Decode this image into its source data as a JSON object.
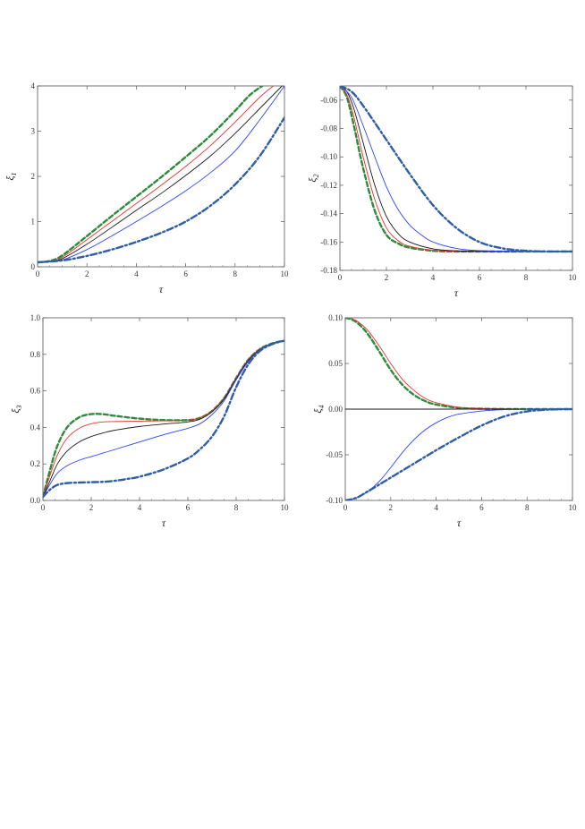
{
  "colors": {
    "green_dashed": "#2e8b3a",
    "red_solid": "#e8322e",
    "black_solid": "#1a1a1a",
    "blue_solid": "#2b45ff",
    "blue_dashdot": "#2f5ea6",
    "zero_line": "#000000"
  },
  "chart_data": [
    {
      "type": "line",
      "panel": "top-left",
      "xlabel": "τ",
      "ylabel": "ξ1",
      "xlim": [
        0,
        10
      ],
      "ylim": [
        0,
        4
      ],
      "xticks": [
        0,
        2,
        4,
        6,
        8,
        10
      ],
      "yticks": [
        0,
        1,
        2,
        3,
        4
      ],
      "ytick_labels": [
        "0",
        "1",
        "2",
        "3",
        "4"
      ],
      "grid": false,
      "series": [
        {
          "style": "green_dashed",
          "x": [
            0,
            0.5,
            1,
            2,
            3,
            4,
            5,
            6,
            7,
            8,
            8.6,
            9.1
          ],
          "y": [
            0.1,
            0.13,
            0.25,
            0.68,
            1.12,
            1.55,
            1.98,
            2.43,
            2.9,
            3.45,
            3.8,
            4.0
          ]
        },
        {
          "style": "red_solid",
          "x": [
            0,
            0.5,
            1,
            2,
            3,
            4,
            5,
            6,
            7,
            8,
            9,
            9.55
          ],
          "y": [
            0.1,
            0.12,
            0.21,
            0.6,
            1.0,
            1.4,
            1.8,
            2.22,
            2.68,
            3.2,
            3.75,
            4.0
          ]
        },
        {
          "style": "black_solid",
          "x": [
            0,
            0.5,
            1,
            2,
            3,
            4,
            5,
            6,
            7,
            8,
            9,
            9.9
          ],
          "y": [
            0.1,
            0.11,
            0.18,
            0.5,
            0.87,
            1.25,
            1.62,
            2.02,
            2.45,
            2.95,
            3.5,
            4.0
          ]
        },
        {
          "style": "blue_solid",
          "x": [
            0,
            0.5,
            1,
            2,
            3,
            4,
            5,
            6,
            7,
            8,
            9,
            10
          ],
          "y": [
            0.1,
            0.11,
            0.15,
            0.38,
            0.68,
            1.0,
            1.33,
            1.68,
            2.08,
            2.56,
            3.25,
            4.0
          ]
        },
        {
          "style": "blue_dashdot",
          "x": [
            0,
            1,
            2,
            3,
            4,
            5,
            6,
            7,
            8,
            9,
            10
          ],
          "y": [
            0.1,
            0.14,
            0.24,
            0.38,
            0.55,
            0.75,
            1.0,
            1.35,
            1.82,
            2.45,
            3.3
          ]
        }
      ]
    },
    {
      "type": "line",
      "panel": "top-right",
      "xlabel": "τ",
      "ylabel": "ξ2",
      "xlim": [
        0,
        10
      ],
      "ylim": [
        -0.18,
        -0.05
      ],
      "xticks": [
        0,
        2,
        4,
        6,
        8,
        10
      ],
      "yticks": [
        -0.06,
        -0.08,
        -0.1,
        -0.12,
        -0.14,
        -0.16,
        -0.18
      ],
      "ytick_labels": [
        "-0.06",
        "-0.08",
        "-0.10",
        "-0.12",
        "-0.14",
        "-0.16",
        "-0.18"
      ],
      "grid": false,
      "series": [
        {
          "style": "green_dashed",
          "x": [
            0,
            0.3,
            0.6,
            1,
            1.5,
            2,
            2.5,
            3,
            4,
            5,
            6,
            8,
            10
          ],
          "y": [
            -0.05,
            -0.058,
            -0.078,
            -0.108,
            -0.138,
            -0.155,
            -0.161,
            -0.164,
            -0.1662,
            -0.1667,
            -0.1667,
            -0.1667,
            -0.1667
          ]
        },
        {
          "style": "red_solid",
          "x": [
            0,
            0.3,
            0.6,
            1,
            1.5,
            2,
            2.5,
            3,
            4,
            5,
            6,
            8,
            10
          ],
          "y": [
            -0.05,
            -0.056,
            -0.072,
            -0.1,
            -0.13,
            -0.15,
            -0.159,
            -0.163,
            -0.1658,
            -0.1665,
            -0.1667,
            -0.1667,
            -0.1667
          ]
        },
        {
          "style": "black_solid",
          "x": [
            0,
            0.3,
            0.6,
            1,
            1.5,
            2,
            2.5,
            3,
            4,
            5,
            6,
            8,
            10
          ],
          "y": [
            -0.05,
            -0.054,
            -0.066,
            -0.09,
            -0.12,
            -0.142,
            -0.154,
            -0.16,
            -0.1648,
            -0.1662,
            -0.1666,
            -0.1667,
            -0.1667
          ]
        },
        {
          "style": "blue_solid",
          "x": [
            0,
            0.5,
            1,
            1.5,
            2,
            2.5,
            3,
            3.5,
            4,
            5,
            6,
            8,
            10
          ],
          "y": [
            -0.05,
            -0.058,
            -0.078,
            -0.1,
            -0.121,
            -0.137,
            -0.148,
            -0.155,
            -0.16,
            -0.1645,
            -0.1661,
            -0.1667,
            -0.1667
          ]
        },
        {
          "style": "blue_dashdot",
          "x": [
            0,
            0.5,
            1,
            2,
            3,
            4,
            5,
            6,
            7,
            8,
            9,
            10
          ],
          "y": [
            -0.05,
            -0.054,
            -0.064,
            -0.088,
            -0.112,
            -0.134,
            -0.15,
            -0.16,
            -0.1645,
            -0.1662,
            -0.1667,
            -0.1667
          ]
        }
      ]
    },
    {
      "type": "line",
      "panel": "bottom-left",
      "xlabel": "τ",
      "ylabel": "ξ3",
      "xlim": [
        0,
        10
      ],
      "ylim": [
        0,
        1
      ],
      "xticks": [
        0,
        2,
        4,
        6,
        8,
        10
      ],
      "yticks": [
        0,
        0.2,
        0.4,
        0.6,
        0.8,
        1.0
      ],
      "ytick_labels": [
        "0.0",
        "0.2",
        "0.4",
        "0.6",
        "0.8",
        "1.0"
      ],
      "grid": false,
      "series": [
        {
          "style": "green_dashed",
          "x": [
            0,
            0.3,
            0.6,
            1,
            1.5,
            2,
            2.5,
            3,
            4,
            5,
            6,
            6.5,
            7,
            7.5,
            8,
            8.5,
            9,
            9.5,
            10
          ],
          "y": [
            0.02,
            0.17,
            0.3,
            0.4,
            0.455,
            0.473,
            0.472,
            0.463,
            0.448,
            0.44,
            0.44,
            0.452,
            0.49,
            0.56,
            0.67,
            0.77,
            0.83,
            0.86,
            0.875
          ]
        },
        {
          "style": "red_solid",
          "x": [
            0,
            0.3,
            0.6,
            1,
            1.5,
            2,
            2.5,
            3,
            4,
            5,
            6,
            6.5,
            7,
            7.5,
            8,
            8.5,
            9,
            9.5,
            10
          ],
          "y": [
            0.02,
            0.14,
            0.25,
            0.34,
            0.395,
            0.42,
            0.43,
            0.432,
            0.434,
            0.436,
            0.44,
            0.452,
            0.49,
            0.56,
            0.67,
            0.77,
            0.83,
            0.86,
            0.875
          ]
        },
        {
          "style": "black_solid",
          "x": [
            0,
            0.3,
            0.6,
            1,
            1.5,
            2,
            2.5,
            3,
            4,
            5,
            6,
            6.5,
            7,
            7.5,
            8,
            8.5,
            9,
            9.5,
            10
          ],
          "y": [
            0.02,
            0.11,
            0.2,
            0.27,
            0.32,
            0.35,
            0.37,
            0.385,
            0.405,
            0.418,
            0.43,
            0.445,
            0.485,
            0.555,
            0.665,
            0.765,
            0.828,
            0.86,
            0.875
          ]
        },
        {
          "style": "blue_solid",
          "x": [
            0,
            0.3,
            0.6,
            1,
            1.5,
            2,
            2.5,
            3,
            4,
            5,
            6,
            6.5,
            7,
            7.5,
            8,
            8.5,
            9,
            9.5,
            10
          ],
          "y": [
            0.02,
            0.09,
            0.15,
            0.19,
            0.22,
            0.24,
            0.26,
            0.28,
            0.32,
            0.36,
            0.395,
            0.42,
            0.47,
            0.545,
            0.66,
            0.76,
            0.826,
            0.86,
            0.875
          ]
        },
        {
          "style": "blue_dashdot",
          "x": [
            0,
            0.3,
            0.6,
            1,
            1.5,
            2,
            2.5,
            3,
            3.5,
            4,
            5,
            6,
            6.5,
            7,
            7.5,
            8,
            8.5,
            9,
            9.5,
            10
          ],
          "y": [
            0.02,
            0.06,
            0.085,
            0.095,
            0.098,
            0.1,
            0.102,
            0.108,
            0.118,
            0.13,
            0.17,
            0.23,
            0.28,
            0.35,
            0.46,
            0.62,
            0.745,
            0.82,
            0.856,
            0.875
          ]
        }
      ]
    },
    {
      "type": "line",
      "panel": "bottom-right",
      "xlabel": "τ",
      "ylabel": "ξ4",
      "xlim": [
        0,
        10
      ],
      "ylim": [
        -0.1,
        0.1
      ],
      "xticks": [
        0,
        2,
        4,
        6,
        8,
        10
      ],
      "yticks": [
        0.1,
        0.05,
        0,
        -0.05,
        -0.1
      ],
      "ytick_labels": [
        "0.10",
        "0.05",
        "0.00",
        "-0.05",
        "-0.10"
      ],
      "grid": false,
      "series": [
        {
          "style": "green_dashed",
          "x": [
            0,
            0.3,
            0.6,
            1,
            1.5,
            2,
            2.5,
            3,
            3.5,
            4,
            5,
            6,
            7,
            8,
            9,
            10
          ],
          "y": [
            0.1,
            0.098,
            0.093,
            0.082,
            0.063,
            0.043,
            0.027,
            0.016,
            0.009,
            0.005,
            0.0014,
            0.0004,
            0.0001,
            0,
            0,
            0
          ]
        },
        {
          "style": "red_solid",
          "x": [
            0,
            0.3,
            0.6,
            1,
            1.5,
            2,
            2.5,
            3,
            3.5,
            4,
            5,
            6,
            7,
            8,
            9,
            10
          ],
          "y": [
            0.1,
            0.099,
            0.095,
            0.086,
            0.069,
            0.05,
            0.033,
            0.021,
            0.012,
            0.007,
            0.002,
            0.0006,
            0.0002,
            0,
            0,
            0
          ]
        },
        {
          "style": "black_solid",
          "x": [
            0,
            10
          ],
          "y": [
            0,
            0
          ]
        },
        {
          "style": "blue_solid",
          "x": [
            0,
            0.3,
            0.6,
            1,
            1.5,
            2,
            2.5,
            3,
            3.5,
            4,
            4.5,
            5,
            6,
            7,
            8,
            9,
            10
          ],
          "y": [
            -0.1,
            -0.099,
            -0.096,
            -0.09,
            -0.079,
            -0.064,
            -0.048,
            -0.034,
            -0.023,
            -0.015,
            -0.009,
            -0.0055,
            -0.002,
            -0.0006,
            -0.0002,
            0,
            0
          ]
        },
        {
          "style": "blue_dashdot",
          "x": [
            0,
            0.5,
            1,
            2,
            3,
            4,
            5,
            6,
            7,
            8,
            9,
            10
          ],
          "y": [
            -0.1,
            -0.097,
            -0.09,
            -0.075,
            -0.06,
            -0.045,
            -0.031,
            -0.018,
            -0.008,
            -0.0025,
            -0.0005,
            0
          ]
        }
      ]
    }
  ]
}
